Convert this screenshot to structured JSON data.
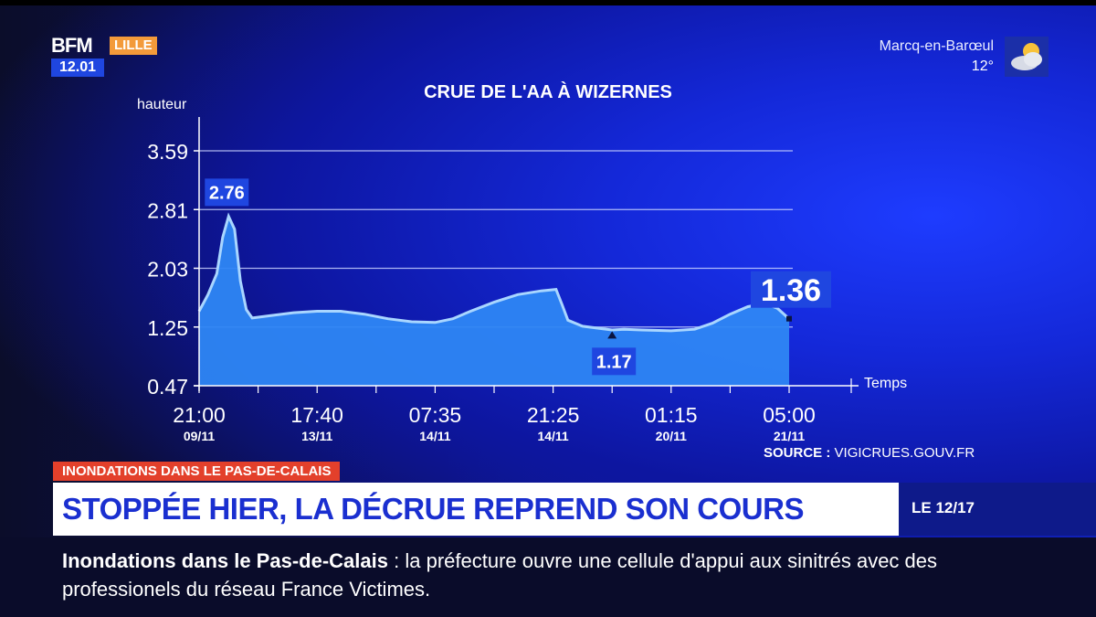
{
  "channel": {
    "brand": "BFM",
    "city": "LILLE",
    "time": "12.01"
  },
  "weather": {
    "city": "Marcq-en-Barœul",
    "temp": "12°",
    "icon": "cloud-sun-icon"
  },
  "chart_data": {
    "type": "area",
    "title": "CRUE DE L'AA À WIZERNES",
    "ylabel": "hauteur",
    "xlabel": "Temps",
    "yticks": [
      0.47,
      1.25,
      2.03,
      2.81,
      3.59
    ],
    "ylim": [
      0.47,
      3.59
    ],
    "xticks": [
      {
        "time": "21:00",
        "date": "09/11"
      },
      {
        "time": "17:40",
        "date": "13/11"
      },
      {
        "time": "07:35",
        "date": "14/11"
      },
      {
        "time": "21:25",
        "date": "14/11"
      },
      {
        "time": "01:15",
        "date": "20/11"
      },
      {
        "time": "05:00",
        "date": "21/11"
      }
    ],
    "xdomain": [
      0,
      100
    ],
    "points": [
      [
        0,
        1.46
      ],
      [
        1.5,
        1.68
      ],
      [
        3,
        1.96
      ],
      [
        4,
        2.44
      ],
      [
        5,
        2.72
      ],
      [
        6,
        2.55
      ],
      [
        7,
        1.86
      ],
      [
        8,
        1.48
      ],
      [
        9,
        1.37
      ],
      [
        12,
        1.4
      ],
      [
        16,
        1.44
      ],
      [
        20,
        1.46
      ],
      [
        24,
        1.46
      ],
      [
        28,
        1.42
      ],
      [
        32,
        1.36
      ],
      [
        36,
        1.32
      ],
      [
        40,
        1.31
      ],
      [
        43,
        1.36
      ],
      [
        46,
        1.46
      ],
      [
        50,
        1.58
      ],
      [
        54,
        1.68
      ],
      [
        58,
        1.73
      ],
      [
        60.5,
        1.75
      ],
      [
        61.5,
        1.55
      ],
      [
        62.5,
        1.34
      ],
      [
        65,
        1.26
      ],
      [
        68,
        1.23
      ],
      [
        70,
        1.21
      ],
      [
        72,
        1.22
      ],
      [
        75,
        1.21
      ],
      [
        80,
        1.2
      ],
      [
        84,
        1.22
      ],
      [
        87,
        1.3
      ],
      [
        90,
        1.42
      ],
      [
        93,
        1.52
      ],
      [
        96,
        1.56
      ],
      [
        98,
        1.5
      ],
      [
        100,
        1.36
      ]
    ],
    "color": "#2e86f4",
    "line_color": "#a9d6ff",
    "callouts": [
      {
        "label": "2.76",
        "x": 5,
        "y": 2.76
      },
      {
        "label": "1.17",
        "x": 70,
        "y": 1.17
      },
      {
        "label": "1.36",
        "x": 100,
        "y": 1.36
      }
    ],
    "grid": true
  },
  "source": {
    "label": "SOURCE :",
    "value": "VIGICRUES.GOUV.FR"
  },
  "banner": {
    "kicker": "INONDATIONS DANS LE PAS-DE-CALAIS",
    "headline": "STOPPÉE HIER, LA DÉCRUE REPREND SON COURS",
    "show": "LE 12/17"
  },
  "ticker": {
    "topic": "Inondations dans le Pas-de-Calais",
    "separator": ":",
    "text": "la préfecture ouvre une cellule d'appui aux sinitrés avec des professionels du réseau France Victimes."
  },
  "colors": {
    "accent": "#1f46e0",
    "kicker": "#e3402b",
    "headline": "#1a2fd0",
    "city": "#f39a3a"
  }
}
